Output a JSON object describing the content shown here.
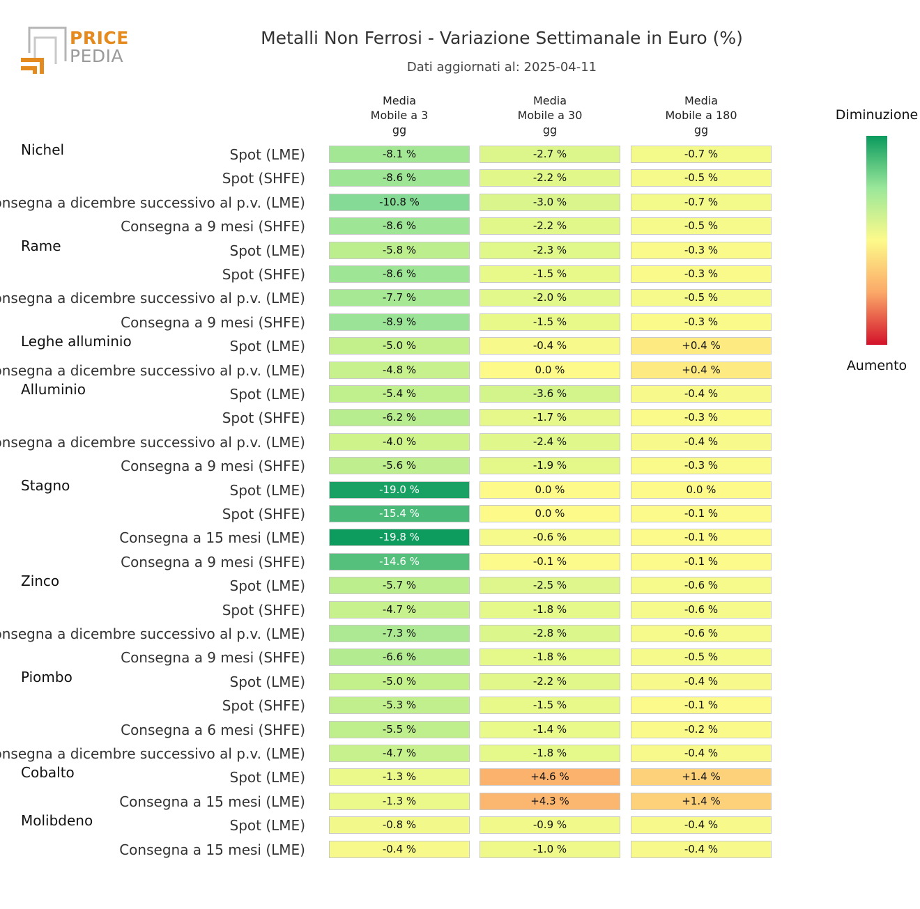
{
  "header": {
    "logo_line1": "PRICE",
    "logo_line2": "PEDIA",
    "title": "Metalli Non Ferrosi - Variazione Settimanale in Euro (%)",
    "subtitle": "Dati aggiornati al: 2025-04-11"
  },
  "legend": {
    "top_label": "Diminuzione",
    "bottom_label": "Aumento"
  },
  "colors": {
    "strong_decrease": "#0a9a5d",
    "neutral": "#fdfa8a",
    "strong_increase": "#d3122a"
  },
  "chart_data": {
    "type": "heatmap",
    "title": "Metalli Non Ferrosi - Variazione Settimanale in Euro (%)",
    "columns": [
      "Media\nMobile a 3\ngg",
      "Media\nMobile a 30\ngg",
      "Media\nMobile a 180\ngg"
    ],
    "unit": "%",
    "groups": [
      {
        "name": "Nichel",
        "rows": [
          {
            "label": "Spot (LME)",
            "values": [
              -8.1,
              -2.7,
              -0.7
            ]
          },
          {
            "label": "Spot (SHFE)",
            "values": [
              -8.6,
              -2.2,
              -0.5
            ]
          },
          {
            "label": "Consegna a dicembre successivo al p.v. (LME)",
            "values": [
              -10.8,
              -3.0,
              -0.7
            ]
          },
          {
            "label": "Consegna a 9 mesi (SHFE)",
            "values": [
              -8.6,
              -2.2,
              -0.5
            ]
          }
        ]
      },
      {
        "name": "Rame",
        "rows": [
          {
            "label": "Spot (LME)",
            "values": [
              -5.8,
              -2.3,
              -0.3
            ]
          },
          {
            "label": "Spot (SHFE)",
            "values": [
              -8.6,
              -1.5,
              -0.3
            ]
          },
          {
            "label": "Consegna a dicembre successivo al p.v. (LME)",
            "values": [
              -7.7,
              -2.0,
              -0.5
            ]
          },
          {
            "label": "Consegna a 9 mesi (SHFE)",
            "values": [
              -8.9,
              -1.5,
              -0.3
            ]
          }
        ]
      },
      {
        "name": "Leghe alluminio",
        "rows": [
          {
            "label": "Spot (LME)",
            "values": [
              -5.0,
              -0.4,
              0.4
            ]
          },
          {
            "label": "Consegna a dicembre successivo al p.v. (LME)",
            "values": [
              -4.8,
              0.0,
              0.4
            ]
          }
        ]
      },
      {
        "name": "Alluminio",
        "rows": [
          {
            "label": "Spot (LME)",
            "values": [
              -5.4,
              -3.6,
              -0.4
            ]
          },
          {
            "label": "Spot (SHFE)",
            "values": [
              -6.2,
              -1.7,
              -0.3
            ]
          },
          {
            "label": "Consegna a dicembre successivo al p.v. (LME)",
            "values": [
              -4.0,
              -2.4,
              -0.4
            ]
          },
          {
            "label": "Consegna a 9 mesi (SHFE)",
            "values": [
              -5.6,
              -1.9,
              -0.3
            ]
          }
        ]
      },
      {
        "name": "Stagno",
        "rows": [
          {
            "label": "Spot (LME)",
            "values": [
              -19.0,
              0.0,
              0.0
            ]
          },
          {
            "label": "Spot (SHFE)",
            "values": [
              -15.4,
              0.0,
              -0.1
            ]
          },
          {
            "label": "Consegna a 15 mesi (LME)",
            "values": [
              -19.8,
              -0.6,
              -0.1
            ]
          },
          {
            "label": "Consegna a 9 mesi (SHFE)",
            "values": [
              -14.6,
              -0.1,
              -0.1
            ]
          }
        ]
      },
      {
        "name": "Zinco",
        "rows": [
          {
            "label": "Spot (LME)",
            "values": [
              -5.7,
              -2.5,
              -0.6
            ]
          },
          {
            "label": "Spot (SHFE)",
            "values": [
              -4.7,
              -1.8,
              -0.6
            ]
          },
          {
            "label": "Consegna a dicembre successivo al p.v. (LME)",
            "values": [
              -7.3,
              -2.8,
              -0.6
            ]
          },
          {
            "label": "Consegna a 9 mesi (SHFE)",
            "values": [
              -6.6,
              -1.8,
              -0.5
            ]
          }
        ]
      },
      {
        "name": "Piombo",
        "rows": [
          {
            "label": "Spot (LME)",
            "values": [
              -5.0,
              -2.2,
              -0.4
            ]
          },
          {
            "label": "Spot (SHFE)",
            "values": [
              -5.3,
              -1.5,
              -0.1
            ]
          },
          {
            "label": "Consegna a 6 mesi (SHFE)",
            "values": [
              -5.5,
              -1.4,
              -0.2
            ]
          },
          {
            "label": "Consegna a dicembre successivo al p.v. (LME)",
            "values": [
              -4.7,
              -1.8,
              -0.4
            ]
          }
        ]
      },
      {
        "name": "Cobalto",
        "rows": [
          {
            "label": "Spot (LME)",
            "values": [
              -1.3,
              4.6,
              1.4
            ]
          },
          {
            "label": "Consegna a 15 mesi (LME)",
            "values": [
              -1.3,
              4.3,
              1.4
            ]
          }
        ]
      },
      {
        "name": "Molibdeno",
        "rows": [
          {
            "label": "Spot (LME)",
            "values": [
              -0.8,
              -0.9,
              -0.4
            ]
          },
          {
            "label": "Consegna a 15 mesi (LME)",
            "values": [
              -0.4,
              -1.0,
              -0.4
            ]
          }
        ]
      }
    ]
  }
}
